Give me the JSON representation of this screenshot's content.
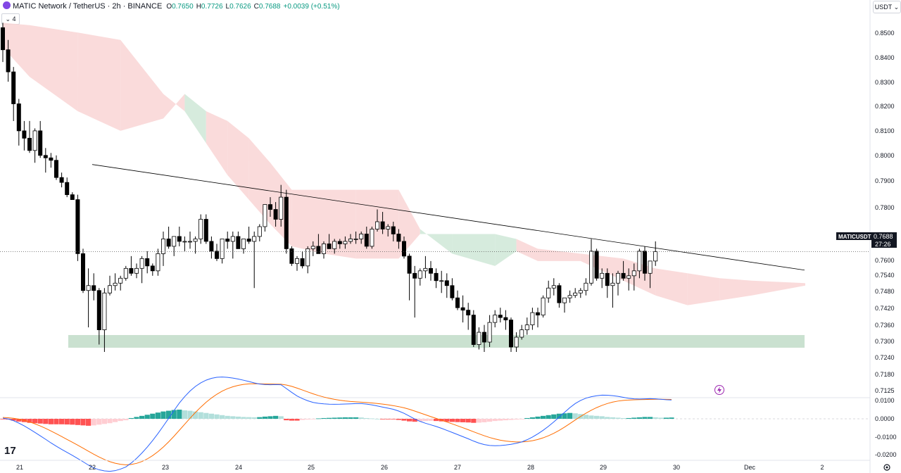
{
  "header": {
    "title": "MATIC Network / TetherUS · 2h · BINANCE",
    "ohlc": [
      {
        "label": "O",
        "value": "0.7650"
      },
      {
        "label": "H",
        "value": "0.7726"
      },
      {
        "label": "L",
        "value": "0.7626"
      },
      {
        "label": "C",
        "value": "0.7688"
      },
      {
        "label": "",
        "value": "+0.0039 (+0.51%)"
      }
    ],
    "indicator_count": "4",
    "currency": "USDT"
  },
  "price_label": {
    "symbol": "MATICUSDT",
    "price": "0.7688",
    "countdown": "27:26"
  },
  "logo": "17",
  "colors": {
    "up": "#ffffff",
    "down": "#000000",
    "cloud_red": "#f9d5d5",
    "cloud_green": "#cfe8d7",
    "support_zone": "#a6cdb0",
    "macd_line": "#2962ff",
    "signal_line": "#ff6d00",
    "hist_pos_strong": "#26a69a",
    "hist_pos_weak": "#b2dfdb",
    "hist_neg_strong": "#ff5252",
    "hist_neg_weak": "#ffcdd2",
    "trendline": "#000000"
  },
  "icons": {
    "symbol": "matic-logo-icon",
    "settings": "gear-icon",
    "alert": "lightning-icon",
    "chevron": "chevron-down-icon"
  },
  "chart_data": {
    "type": "candlestick",
    "symbol": "MATICUSDT",
    "interval": "2h",
    "price_axis": {
      "ticks": [
        "0.8500",
        "0.8400",
        "0.8300",
        "0.8200",
        "0.8100",
        "0.8000",
        "0.7900",
        "0.7800",
        "0.7700",
        "0.7600",
        "0.7540",
        "0.7480",
        "0.7420",
        "0.7360",
        "0.7300",
        "0.7240",
        "0.7180",
        "0.7125"
      ]
    },
    "macd_axis": {
      "ticks": [
        "0.0100",
        "0.0000",
        "-0.0100",
        "-0.0200"
      ]
    },
    "time_axis": {
      "ticks": [
        "21",
        "22",
        "23",
        "24",
        "25",
        "26",
        "27",
        "28",
        "29",
        "30",
        "Dec",
        "2"
      ]
    },
    "candles_ohlc": [
      [
        0.86,
        0.862,
        0.846,
        0.851
      ],
      [
        0.851,
        0.855,
        0.838,
        0.842
      ],
      [
        0.842,
        0.844,
        0.822,
        0.829
      ],
      [
        0.829,
        0.831,
        0.812,
        0.818
      ],
      [
        0.818,
        0.822,
        0.81,
        0.815
      ],
      [
        0.815,
        0.822,
        0.809,
        0.81
      ],
      [
        0.81,
        0.819,
        0.805,
        0.818
      ],
      [
        0.818,
        0.822,
        0.807,
        0.808
      ],
      [
        0.808,
        0.811,
        0.801,
        0.807
      ],
      [
        0.807,
        0.809,
        0.803,
        0.806
      ],
      [
        0.806,
        0.808,
        0.798,
        0.799
      ],
      [
        0.799,
        0.801,
        0.795,
        0.797
      ],
      [
        0.797,
        0.799,
        0.791,
        0.792
      ],
      [
        0.792,
        0.793,
        0.79,
        0.79
      ],
      [
        0.79,
        0.792,
        0.765,
        0.768
      ],
      [
        0.768,
        0.77,
        0.752,
        0.753
      ],
      [
        0.753,
        0.762,
        0.738,
        0.755
      ],
      [
        0.755,
        0.76,
        0.749,
        0.753
      ],
      [
        0.753,
        0.754,
        0.731,
        0.737
      ],
      [
        0.737,
        0.754,
        0.728,
        0.752
      ],
      [
        0.752,
        0.759,
        0.751,
        0.755
      ],
      [
        0.755,
        0.76,
        0.753,
        0.756
      ],
      [
        0.756,
        0.759,
        0.753,
        0.758
      ],
      [
        0.758,
        0.763,
        0.757,
        0.762
      ],
      [
        0.762,
        0.767,
        0.759,
        0.76
      ],
      [
        0.76,
        0.764,
        0.758,
        0.762
      ],
      [
        0.762,
        0.767,
        0.756,
        0.766
      ],
      [
        0.766,
        0.769,
        0.76,
        0.763
      ],
      [
        0.763,
        0.764,
        0.759,
        0.761
      ],
      [
        0.761,
        0.77,
        0.759,
        0.768
      ],
      [
        0.768,
        0.777,
        0.763,
        0.774
      ],
      [
        0.774,
        0.779,
        0.77,
        0.771
      ],
      [
        0.771,
        0.775,
        0.767,
        0.775
      ],
      [
        0.775,
        0.779,
        0.771,
        0.773
      ],
      [
        0.773,
        0.775,
        0.769,
        0.773
      ],
      [
        0.773,
        0.777,
        0.77,
        0.773
      ],
      [
        0.773,
        0.775,
        0.768,
        0.774
      ],
      [
        0.774,
        0.784,
        0.772,
        0.782
      ],
      [
        0.782,
        0.784,
        0.772,
        0.773
      ],
      [
        0.773,
        0.775,
        0.766,
        0.769
      ],
      [
        0.769,
        0.772,
        0.765,
        0.766
      ],
      [
        0.766,
        0.77,
        0.764,
        0.774
      ],
      [
        0.774,
        0.777,
        0.77,
        0.773
      ],
      [
        0.773,
        0.777,
        0.766,
        0.775
      ],
      [
        0.775,
        0.777,
        0.77,
        0.77
      ],
      [
        0.77,
        0.774,
        0.768,
        0.774
      ],
      [
        0.774,
        0.779,
        0.772,
        0.773
      ],
      [
        0.773,
        0.777,
        0.754,
        0.775
      ],
      [
        0.775,
        0.78,
        0.773,
        0.779
      ],
      [
        0.779,
        0.785,
        0.777,
        0.788
      ],
      [
        0.788,
        0.791,
        0.783,
        0.786
      ],
      [
        0.786,
        0.789,
        0.779,
        0.782
      ],
      [
        0.782,
        0.796,
        0.779,
        0.791
      ],
      [
        0.791,
        0.794,
        0.768,
        0.77
      ],
      [
        0.77,
        0.771,
        0.763,
        0.764
      ],
      [
        0.764,
        0.767,
        0.761,
        0.766
      ],
      [
        0.766,
        0.769,
        0.762,
        0.763
      ],
      [
        0.763,
        0.771,
        0.76,
        0.77
      ],
      [
        0.77,
        0.773,
        0.767,
        0.771
      ],
      [
        0.771,
        0.776,
        0.768,
        0.768
      ],
      [
        0.768,
        0.773,
        0.766,
        0.772
      ],
      [
        0.772,
        0.776,
        0.77,
        0.77
      ],
      [
        0.77,
        0.774,
        0.768,
        0.773
      ],
      [
        0.773,
        0.774,
        0.77,
        0.772
      ],
      [
        0.772,
        0.775,
        0.77,
        0.773
      ],
      [
        0.773,
        0.776,
        0.772,
        0.774
      ],
      [
        0.774,
        0.777,
        0.772,
        0.774
      ],
      [
        0.774,
        0.777,
        0.772,
        0.776
      ],
      [
        0.776,
        0.779,
        0.77,
        0.771
      ],
      [
        0.771,
        0.779,
        0.77,
        0.778
      ],
      [
        0.778,
        0.786,
        0.777,
        0.781
      ],
      [
        0.781,
        0.785,
        0.776,
        0.778
      ],
      [
        0.778,
        0.78,
        0.775,
        0.779
      ],
      [
        0.779,
        0.781,
        0.773,
        0.776
      ],
      [
        0.776,
        0.778,
        0.77,
        0.773
      ],
      [
        0.773,
        0.775,
        0.766,
        0.767
      ],
      [
        0.767,
        0.768,
        0.749,
        0.76
      ],
      [
        0.76,
        0.763,
        0.742,
        0.758
      ],
      [
        0.758,
        0.762,
        0.755,
        0.761
      ],
      [
        0.761,
        0.767,
        0.758,
        0.762
      ],
      [
        0.762,
        0.765,
        0.757,
        0.76
      ],
      [
        0.76,
        0.762,
        0.754,
        0.757
      ],
      [
        0.757,
        0.761,
        0.752,
        0.757
      ],
      [
        0.757,
        0.76,
        0.75,
        0.755
      ],
      [
        0.755,
        0.758,
        0.749,
        0.75
      ],
      [
        0.75,
        0.753,
        0.745,
        0.746
      ],
      [
        0.746,
        0.751,
        0.74,
        0.745
      ],
      [
        0.745,
        0.748,
        0.737,
        0.743
      ],
      [
        0.743,
        0.745,
        0.73,
        0.731
      ],
      [
        0.731,
        0.738,
        0.729,
        0.736
      ],
      [
        0.736,
        0.739,
        0.728,
        0.732
      ],
      [
        0.732,
        0.743,
        0.73,
        0.74
      ],
      [
        0.74,
        0.745,
        0.738,
        0.743
      ],
      [
        0.743,
        0.746,
        0.74,
        0.742
      ],
      [
        0.742,
        0.745,
        0.737,
        0.741
      ],
      [
        0.741,
        0.742,
        0.728,
        0.73
      ],
      [
        0.73,
        0.736,
        0.728,
        0.734
      ],
      [
        0.734,
        0.739,
        0.733,
        0.737
      ],
      [
        0.737,
        0.742,
        0.735,
        0.739
      ],
      [
        0.739,
        0.746,
        0.737,
        0.744
      ],
      [
        0.744,
        0.746,
        0.738,
        0.743
      ],
      [
        0.743,
        0.751,
        0.742,
        0.75
      ],
      [
        0.75,
        0.757,
        0.748,
        0.754
      ],
      [
        0.754,
        0.758,
        0.751,
        0.755
      ],
      [
        0.755,
        0.756,
        0.746,
        0.748
      ],
      [
        0.748,
        0.75,
        0.744,
        0.75
      ],
      [
        0.75,
        0.753,
        0.748,
        0.751
      ],
      [
        0.751,
        0.754,
        0.75,
        0.752
      ],
      [
        0.752,
        0.754,
        0.75,
        0.753
      ],
      [
        0.753,
        0.758,
        0.751,
        0.756
      ],
      [
        0.756,
        0.774,
        0.755,
        0.769
      ],
      [
        0.769,
        0.77,
        0.757,
        0.758
      ],
      [
        0.758,
        0.762,
        0.754,
        0.76
      ],
      [
        0.76,
        0.762,
        0.75,
        0.755
      ],
      [
        0.755,
        0.76,
        0.746,
        0.756
      ],
      [
        0.756,
        0.761,
        0.751,
        0.76
      ],
      [
        0.76,
        0.765,
        0.757,
        0.758
      ],
      [
        0.758,
        0.762,
        0.753,
        0.759
      ],
      [
        0.759,
        0.764,
        0.753,
        0.761
      ],
      [
        0.761,
        0.77,
        0.758,
        0.769
      ],
      [
        0.769,
        0.771,
        0.757,
        0.76
      ],
      [
        0.76,
        0.763,
        0.754,
        0.765
      ],
      [
        0.765,
        0.773,
        0.763,
        0.7688
      ]
    ],
    "ichimoku_cloud": [
      {
        "x": 0,
        "a": 0.862,
        "b": 0.852
      },
      {
        "x": 5,
        "a": 0.861,
        "b": 0.84
      },
      {
        "x": 14,
        "a": 0.858,
        "b": 0.826
      },
      {
        "x": 22,
        "a": 0.855,
        "b": 0.818
      },
      {
        "x": 30,
        "a": 0.833,
        "b": 0.823
      },
      {
        "x": 34,
        "a": 0.826,
        "b": 0.833
      },
      {
        "x": 38,
        "a": 0.813,
        "b": 0.826
      },
      {
        "x": 42,
        "a": 0.8,
        "b": 0.822
      },
      {
        "x": 46,
        "a": 0.79,
        "b": 0.815
      },
      {
        "x": 50,
        "a": 0.78,
        "b": 0.805
      },
      {
        "x": 54,
        "a": 0.771,
        "b": 0.794
      },
      {
        "x": 60,
        "a": 0.768,
        "b": 0.794
      },
      {
        "x": 66,
        "a": 0.766,
        "b": 0.794
      },
      {
        "x": 74,
        "a": 0.766,
        "b": 0.794
      },
      {
        "x": 78,
        "a": 0.776,
        "b": 0.778
      },
      {
        "x": 84,
        "a": 0.776,
        "b": 0.768
      },
      {
        "x": 92,
        "a": 0.776,
        "b": 0.763
      },
      {
        "x": 96,
        "a": 0.774,
        "b": 0.769
      },
      {
        "x": 100,
        "a": 0.77,
        "b": 0.765
      },
      {
        "x": 108,
        "a": 0.768,
        "b": 0.765
      },
      {
        "x": 116,
        "a": 0.766,
        "b": 0.757
      },
      {
        "x": 122,
        "a": 0.762,
        "b": 0.751
      },
      {
        "x": 128,
        "a": 0.76,
        "b": 0.747
      },
      {
        "x": 134,
        "a": 0.758,
        "b": 0.749
      },
      {
        "x": 140,
        "a": 0.757,
        "b": 0.751
      },
      {
        "x": 150,
        "a": 0.756,
        "b": 0.755
      }
    ],
    "support_zone": {
      "from_index": 11,
      "to_index": 149,
      "low": 0.7283,
      "high": 0.7318
    },
    "trendline": {
      "start": {
        "index": 16,
        "price": 0.8043
      },
      "end": {
        "index": 149,
        "price": 0.7613
      }
    },
    "macd_hist": [
      -0.0001,
      -0.0004,
      -0.001,
      -0.0015,
      -0.0018,
      -0.0022,
      -0.0024,
      -0.0026,
      -0.0028,
      -0.003,
      -0.003,
      -0.003,
      -0.0031,
      -0.0032,
      -0.0034,
      -0.0036,
      -0.0038,
      -0.0036,
      -0.0032,
      -0.0028,
      -0.0024,
      -0.0018,
      -0.0012,
      -0.0008,
      0.0004,
      0.001,
      0.0016,
      0.0022,
      0.0028,
      0.0034,
      0.004,
      0.0044,
      0.0048,
      0.005,
      0.0046,
      0.0044,
      0.004,
      0.0036,
      0.0032,
      0.0028,
      0.0024,
      0.002,
      0.0016,
      0.0014,
      0.0012,
      0.001,
      0.0009,
      0.0008,
      0.0009,
      0.0012,
      0.0014,
      0.0016,
      0.0014,
      -0.0008,
      -0.001,
      -0.001,
      -0.0006,
      -0.0004,
      -0.0002,
      0.0002,
      0.0004,
      0.0005,
      0.0006,
      0.0007,
      0.0008,
      0.0008,
      0.0008,
      0.0007,
      0.0004,
      0.0002,
      0.0,
      -0.0001,
      -0.0001,
      -0.0002,
      -0.0006,
      -0.001,
      -0.0014,
      -0.0016,
      -0.0014,
      -0.0012,
      -0.0011,
      -0.0012,
      -0.0014,
      -0.0016,
      -0.0017,
      -0.0018,
      -0.0019,
      -0.002,
      -0.0022,
      -0.0021,
      -0.0019,
      -0.0016,
      -0.0012,
      -0.001,
      -0.0008,
      -0.0006,
      -0.0004,
      -0.0002,
      0.0004,
      0.0008,
      0.0012,
      0.0016,
      0.002,
      0.0024,
      0.0028,
      0.003,
      0.0032,
      0.003,
      0.0026,
      0.0022,
      0.0018,
      0.0016,
      0.0014,
      0.001,
      0.0008,
      0.0006,
      0.0004,
      0.0004,
      0.0006,
      0.0008,
      0.001,
      0.001,
      0.0008,
      0.0006,
      0.0006,
      0.0007
    ]
  }
}
